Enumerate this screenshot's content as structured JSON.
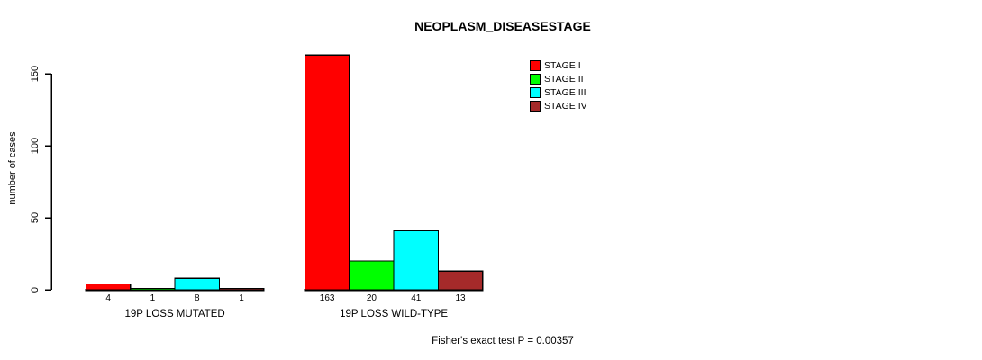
{
  "chart_data": {
    "type": "bar",
    "title": "NEOPLASM_DISEASESTAGE",
    "ylabel": "number of cases",
    "xlabel": "",
    "ylim": [
      0,
      163
    ],
    "yticks": [
      0,
      50,
      100,
      150
    ],
    "grid": false,
    "legend_position": "top-right",
    "categories": [
      "19P LOSS MUTATED",
      "19P LOSS WILD-TYPE"
    ],
    "series": [
      {
        "name": "STAGE I",
        "color": "#FF0000",
        "values": [
          4,
          163
        ]
      },
      {
        "name": "STAGE II",
        "color": "#00FF00",
        "values": [
          1,
          20
        ]
      },
      {
        "name": "STAGE III",
        "color": "#00FFFF",
        "values": [
          8,
          41
        ]
      },
      {
        "name": "STAGE IV",
        "color": "#A52A2A",
        "values": [
          1,
          13
        ]
      }
    ],
    "annotation": "Fisher's exact test P = 0.00357",
    "axis_color": "#000000",
    "bar_border_color": "#000000"
  }
}
